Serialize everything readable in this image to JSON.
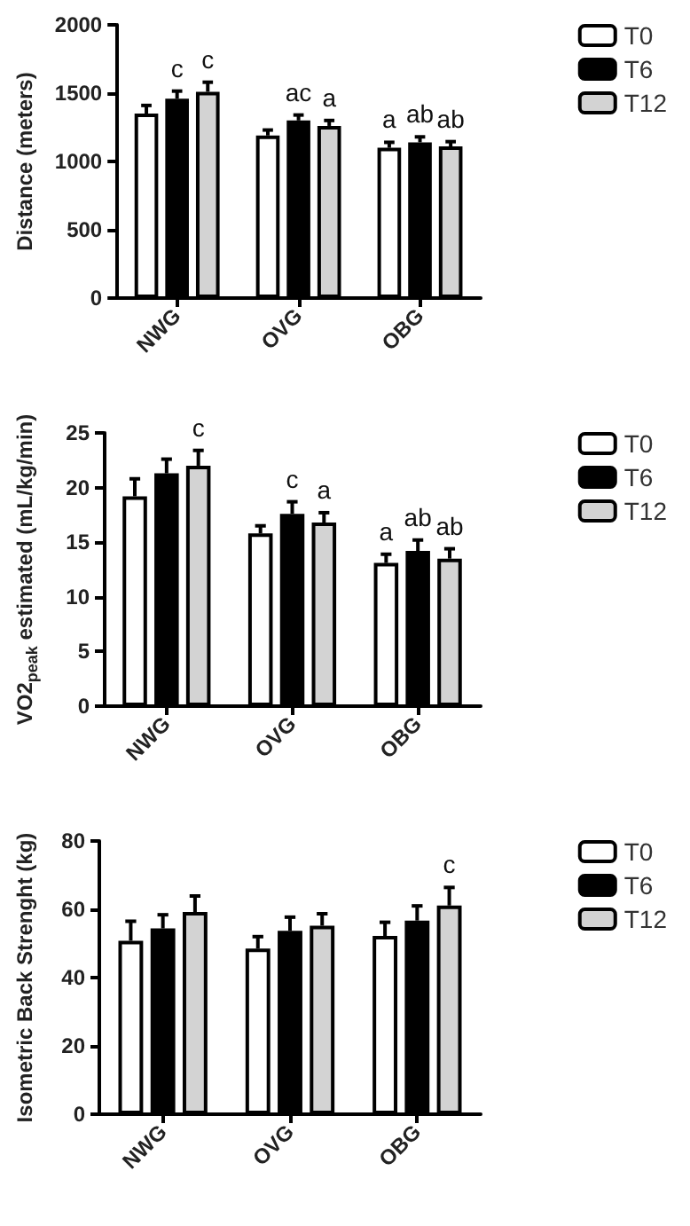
{
  "chart_data": [
    {
      "type": "bar",
      "ylabel": "Distance (meters)",
      "categories": [
        "NWG",
        "OVG",
        "OBG"
      ],
      "ylim": [
        0,
        2000
      ],
      "yticks": [
        0,
        500,
        1000,
        1500,
        2000
      ],
      "legend": "top right",
      "series": [
        {
          "name": "T0",
          "color": "#ffffff",
          "values": [
            1350,
            1190,
            1100
          ],
          "errors": [
            60,
            40,
            40
          ],
          "value_labels": [
            null,
            null,
            "a"
          ]
        },
        {
          "name": "T6",
          "color": "#000000",
          "values": [
            1460,
            1300,
            1140
          ],
          "errors": [
            55,
            40,
            40
          ],
          "value_labels": [
            "c",
            "ac",
            "ab"
          ]
        },
        {
          "name": "T12",
          "color": "#d3d3d3",
          "values": [
            1510,
            1260,
            1110
          ],
          "errors": [
            70,
            40,
            35
          ],
          "value_labels": [
            "c",
            "a",
            "ab"
          ]
        }
      ]
    },
    {
      "type": "bar",
      "ylabel": "VO2$_{peak}$ estimated (mL/kg/min)",
      "categories": [
        "NWG",
        "OVG",
        "OBG"
      ],
      "ylim": [
        0,
        25
      ],
      "yticks": [
        0,
        5,
        10,
        15,
        20,
        25
      ],
      "legend": "top right",
      "series": [
        {
          "name": "T0",
          "color": "#ffffff",
          "values": [
            19.2,
            15.8,
            13.1
          ],
          "errors": [
            1.6,
            0.7,
            0.8
          ],
          "value_labels": [
            null,
            null,
            "a"
          ]
        },
        {
          "name": "T6",
          "color": "#000000",
          "values": [
            21.3,
            17.6,
            14.2
          ],
          "errors": [
            1.3,
            1.1,
            1.0
          ],
          "value_labels": [
            null,
            "c",
            "ab"
          ]
        },
        {
          "name": "T12",
          "color": "#d3d3d3",
          "values": [
            22.0,
            16.8,
            13.5
          ],
          "errors": [
            1.4,
            0.9,
            0.9
          ],
          "value_labels": [
            "c",
            "a",
            "ab"
          ]
        }
      ]
    },
    {
      "type": "bar",
      "ylabel": "Isometric Back Strenght (kg)",
      "categories": [
        "NWG",
        "OVG",
        "OBG"
      ],
      "ylim": [
        0,
        80
      ],
      "yticks": [
        0,
        20,
        40,
        60,
        80
      ],
      "legend": "top right",
      "series": [
        {
          "name": "T0",
          "color": "#ffffff",
          "values": [
            50.8,
            48.5,
            52.2
          ],
          "errors": [
            5.7,
            3.5,
            4.0
          ]
        },
        {
          "name": "T6",
          "color": "#000000",
          "values": [
            54.4,
            53.7,
            56.7
          ],
          "errors": [
            4.0,
            4.0,
            4.3
          ]
        },
        {
          "name": "T12",
          "color": "#d3d3d3",
          "values": [
            59.2,
            55.2,
            61.1
          ],
          "errors": [
            4.7,
            3.5,
            5.3
          ],
          "value_labels": [
            null,
            null,
            "c"
          ]
        }
      ]
    }
  ]
}
